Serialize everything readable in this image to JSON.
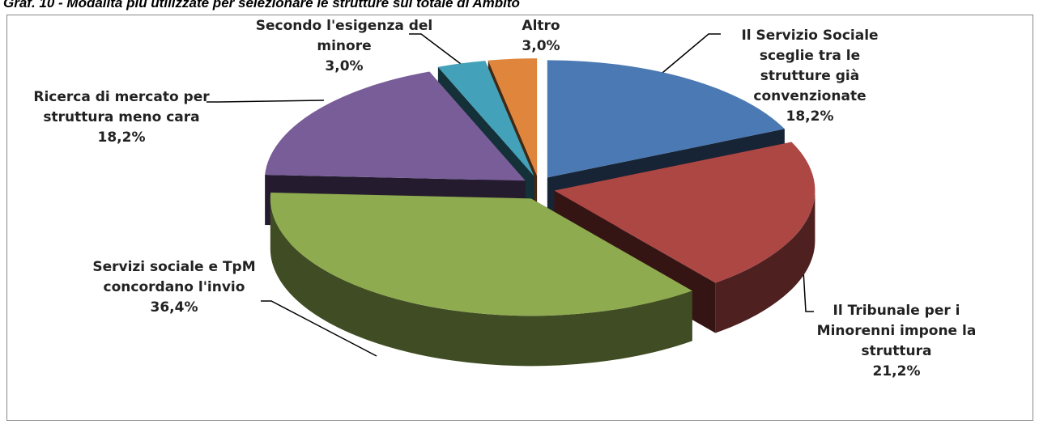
{
  "chart_data": {
    "type": "pie",
    "title": "Graf. 10 - Modalità più utilizzate per selezionare le strutture sul totale di Ambito",
    "categories": [
      "Il Servizio Sociale sceglie tra le strutture già convenzionate",
      "Il Tribunale per i Minorenni impone la struttura",
      "Servizi sociale e TpM concordano l'invio",
      "Ricerca di mercato per struttura meno cara",
      "Secondo l'esigenza del minore",
      "Altro"
    ],
    "values": [
      18.2,
      21.2,
      36.4,
      18.2,
      3.0,
      3.0
    ],
    "value_labels": [
      "18,2%",
      "21,2%",
      "36,4%",
      "18,2%",
      "3,0%",
      "3,0%"
    ],
    "colors": [
      "#4a79b3",
      "#ad4744",
      "#8fab50",
      "#785d98",
      "#44a1ba",
      "#e0853c"
    ]
  }
}
